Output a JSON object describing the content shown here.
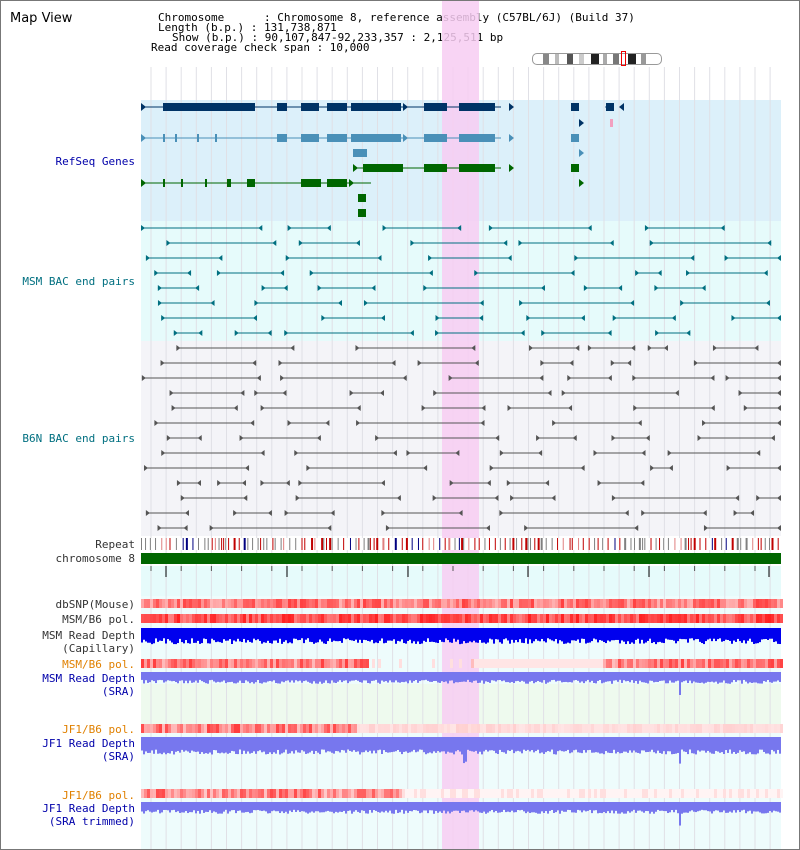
{
  "view_title": "Map View",
  "info": {
    "chromosome": "Chromosome      : Chromosome 8, reference assembly (C57BL/6J) (Build 37)",
    "length": "Length (b.p.) : 131,738,871",
    "show": "Show (b.p.) : 90,107,847-92,233,357 : 2,125,511 bp",
    "coverage": "Read coverage check span : 10,000"
  },
  "track_labels": {
    "refseq": "RefSeq Genes",
    "msm_bac": "MSM BAC end pairs",
    "b6n_bac": "B6N BAC end pairs",
    "repeat": "Repeat",
    "chromosome": "chromosome 8",
    "dbsnp": "dbSNP(Mouse)",
    "msm_b6_pol_1": "MSM/B6 pol.",
    "msm_depth_cap_1": "MSM Read Depth",
    "msm_depth_cap_2": "(Capillary)",
    "msm_b6_pol_2": "MSM/B6 pol.",
    "msm_depth_sra_1": "MSM Read Depth",
    "msm_depth_sra_2": "(SRA)",
    "jf1_b6_pol_1": "JF1/B6 pol.",
    "jf1_depth_sra_1": "JF1 Read Depth",
    "jf1_depth_sra_2": "(SRA)",
    "jf1_b6_pol_2": "JF1/B6 pol.",
    "jf1_depth_trim_1": "JF1 Read Depth",
    "jf1_depth_trim_2": "(SRA trimmed)"
  },
  "axis": {
    "ticks": [
      "90400000",
      "90800000",
      "91200000",
      "91600000",
      "92000000"
    ]
  },
  "colors": {
    "refseq_dark": "#003366",
    "refseq_mid": "#4a90b8",
    "refseq_green": "#006600",
    "msm_bac": "#006f80",
    "b6n_bac": "#555555",
    "highlight": "#f7cdf2",
    "chrom_bar": "#006600",
    "depth_dark": "#0000ee",
    "depth_light": "#7777ee"
  }
}
